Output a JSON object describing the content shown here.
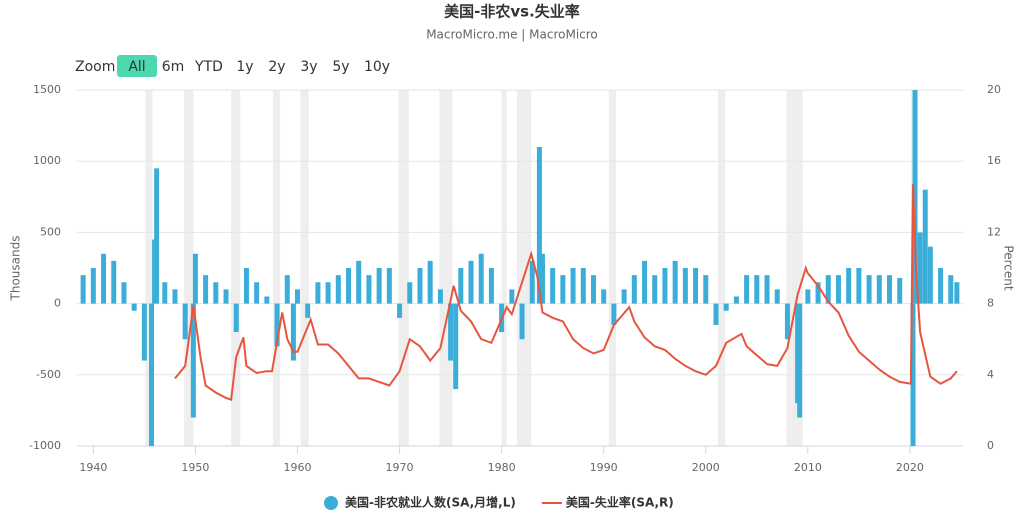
{
  "controls": {
    "zoom_label": "Zoom",
    "buttons": [
      "All",
      "6m",
      "YTD",
      "1y",
      "2y",
      "3y",
      "5y",
      "10y"
    ],
    "active": "All"
  },
  "chart_data": {
    "type": "bar-line",
    "title": "美国-非农vs.失业率",
    "subtitle": "MacroMicro.me | MacroMicro",
    "y_label": "Thousands",
    "y2_label": "Percent",
    "xlim": [
      1938.4,
      2025.2
    ],
    "xticks": [
      1940,
      1950,
      1960,
      1970,
      1980,
      1990,
      2000,
      2010,
      2020
    ],
    "ylim": [
      -1000,
      1500
    ],
    "yticks": [
      -1000,
      -500,
      0,
      500,
      1000,
      1500
    ],
    "y2lim": [
      0,
      20
    ],
    "y2ticks": [
      0,
      4,
      8,
      12,
      16,
      20
    ],
    "grid": true,
    "shaded_ranges": [
      [
        1945.1,
        1945.8
      ],
      [
        1948.9,
        1949.8
      ],
      [
        1953.5,
        1954.4
      ],
      [
        1957.6,
        1958.3
      ],
      [
        1960.3,
        1961.1
      ],
      [
        1969.9,
        1970.9
      ],
      [
        1973.9,
        1975.2
      ],
      [
        1980.0,
        1980.5
      ],
      [
        1981.5,
        1982.9
      ],
      [
        1990.5,
        1991.2
      ],
      [
        2001.2,
        2001.9
      ],
      [
        2007.9,
        2009.5
      ],
      [
        2020.1,
        2020.3
      ]
    ],
    "series": [
      {
        "name": "美国-非农就业人数(SA,月增,L)",
        "type": "bar",
        "color": "#3aaed8",
        "axis": "y",
        "x": [
          1939,
          1940,
          1941,
          1942,
          1943,
          1944,
          1945,
          1945.7,
          1946,
          1946.2,
          1947,
          1948,
          1949,
          1949.8,
          1950,
          1951,
          1952,
          1953,
          1954,
          1955,
          1956,
          1957,
          1958,
          1959,
          1959.6,
          1960,
          1961,
          1962,
          1963,
          1964,
          1965,
          1966,
          1967,
          1968,
          1969,
          1970,
          1971,
          1972,
          1973,
          1974,
          1975,
          1975.5,
          1976,
          1977,
          1978,
          1979,
          1980,
          1981,
          1982,
          1983,
          1983.7,
          1984,
          1985,
          1986,
          1987,
          1988,
          1989,
          1990,
          1991,
          1992,
          1993,
          1994,
          1995,
          1996,
          1997,
          1998,
          1999,
          2000,
          2001,
          2002,
          2003,
          2004,
          2005,
          2006,
          2007,
          2008,
          2009,
          2009.2,
          2010,
          2011,
          2012,
          2013,
          2014,
          2015,
          2016,
          2017,
          2018,
          2019,
          2020.3,
          2020.5,
          2021,
          2021.5,
          2022,
          2023,
          2024,
          2024.6
        ],
        "values": [
          200,
          250,
          350,
          300,
          150,
          -50,
          -400,
          -1000,
          450,
          950,
          150,
          100,
          -250,
          -800,
          350,
          200,
          150,
          100,
          -200,
          250,
          150,
          50,
          -300,
          200,
          -400,
          100,
          -100,
          150,
          150,
          200,
          250,
          300,
          200,
          250,
          250,
          -100,
          150,
          250,
          300,
          100,
          -400,
          -600,
          250,
          300,
          350,
          250,
          -200,
          100,
          -250,
          300,
          1100,
          350,
          250,
          200,
          250,
          250,
          200,
          100,
          -150,
          100,
          200,
          300,
          200,
          250,
          300,
          250,
          250,
          200,
          -150,
          -50,
          50,
          200,
          200,
          200,
          100,
          -250,
          -700,
          -800,
          100,
          150,
          200,
          200,
          250,
          250,
          200,
          200,
          200,
          180,
          -1000,
          1500,
          500,
          800,
          400,
          250,
          200,
          150
        ]
      },
      {
        "name": "美国-失业率(SA,R)",
        "type": "line",
        "color": "#e8553e",
        "axis": "y2",
        "x": [
          1948,
          1949,
          1949.8,
          1950.5,
          1951,
          1952,
          1953,
          1953.5,
          1954,
          1954.7,
          1955,
          1956,
          1957,
          1957.5,
          1958.5,
          1959,
          1959.6,
          1960,
          1961.3,
          1962,
          1963,
          1964,
          1965,
          1966,
          1967,
          1968,
          1969,
          1970,
          1971,
          1972,
          1973,
          1974,
          1975.3,
          1976,
          1977,
          1978,
          1979,
          1980.5,
          1981,
          1982.9,
          1983.5,
          1984,
          1985,
          1986,
          1987,
          1988,
          1989,
          1990,
          1991,
          1992.5,
          1993,
          1994,
          1995,
          1996,
          1997,
          1998,
          1999,
          2000,
          2001,
          2002,
          2003.5,
          2004,
          2005,
          2006,
          2007,
          2008,
          2009,
          2009.8,
          2010,
          2011,
          2012,
          2013,
          2014,
          2015,
          2016,
          2017,
          2018,
          2019,
          2020.1,
          2020.3,
          2020.6,
          2021,
          2022,
          2023,
          2024,
          2024.6
        ],
        "values": [
          3.8,
          4.5,
          7.9,
          5.0,
          3.4,
          3.0,
          2.7,
          2.6,
          5.0,
          6.1,
          4.5,
          4.1,
          4.2,
          4.2,
          7.5,
          6.0,
          5.3,
          5.3,
          7.1,
          5.7,
          5.7,
          5.2,
          4.5,
          3.8,
          3.8,
          3.6,
          3.4,
          4.2,
          6.0,
          5.6,
          4.8,
          5.5,
          9.0,
          7.6,
          7.0,
          6.0,
          5.8,
          7.8,
          7.4,
          10.8,
          9.5,
          7.5,
          7.2,
          7.0,
          6.0,
          5.5,
          5.2,
          5.4,
          6.8,
          7.8,
          7.0,
          6.1,
          5.6,
          5.4,
          4.9,
          4.5,
          4.2,
          4.0,
          4.5,
          5.8,
          6.3,
          5.6,
          5.1,
          4.6,
          4.5,
          5.5,
          8.5,
          10.0,
          9.7,
          9.0,
          8.1,
          7.5,
          6.2,
          5.3,
          4.8,
          4.3,
          3.9,
          3.6,
          3.5,
          14.7,
          10.0,
          6.4,
          3.9,
          3.5,
          3.8,
          4.2
        ]
      }
    ]
  }
}
